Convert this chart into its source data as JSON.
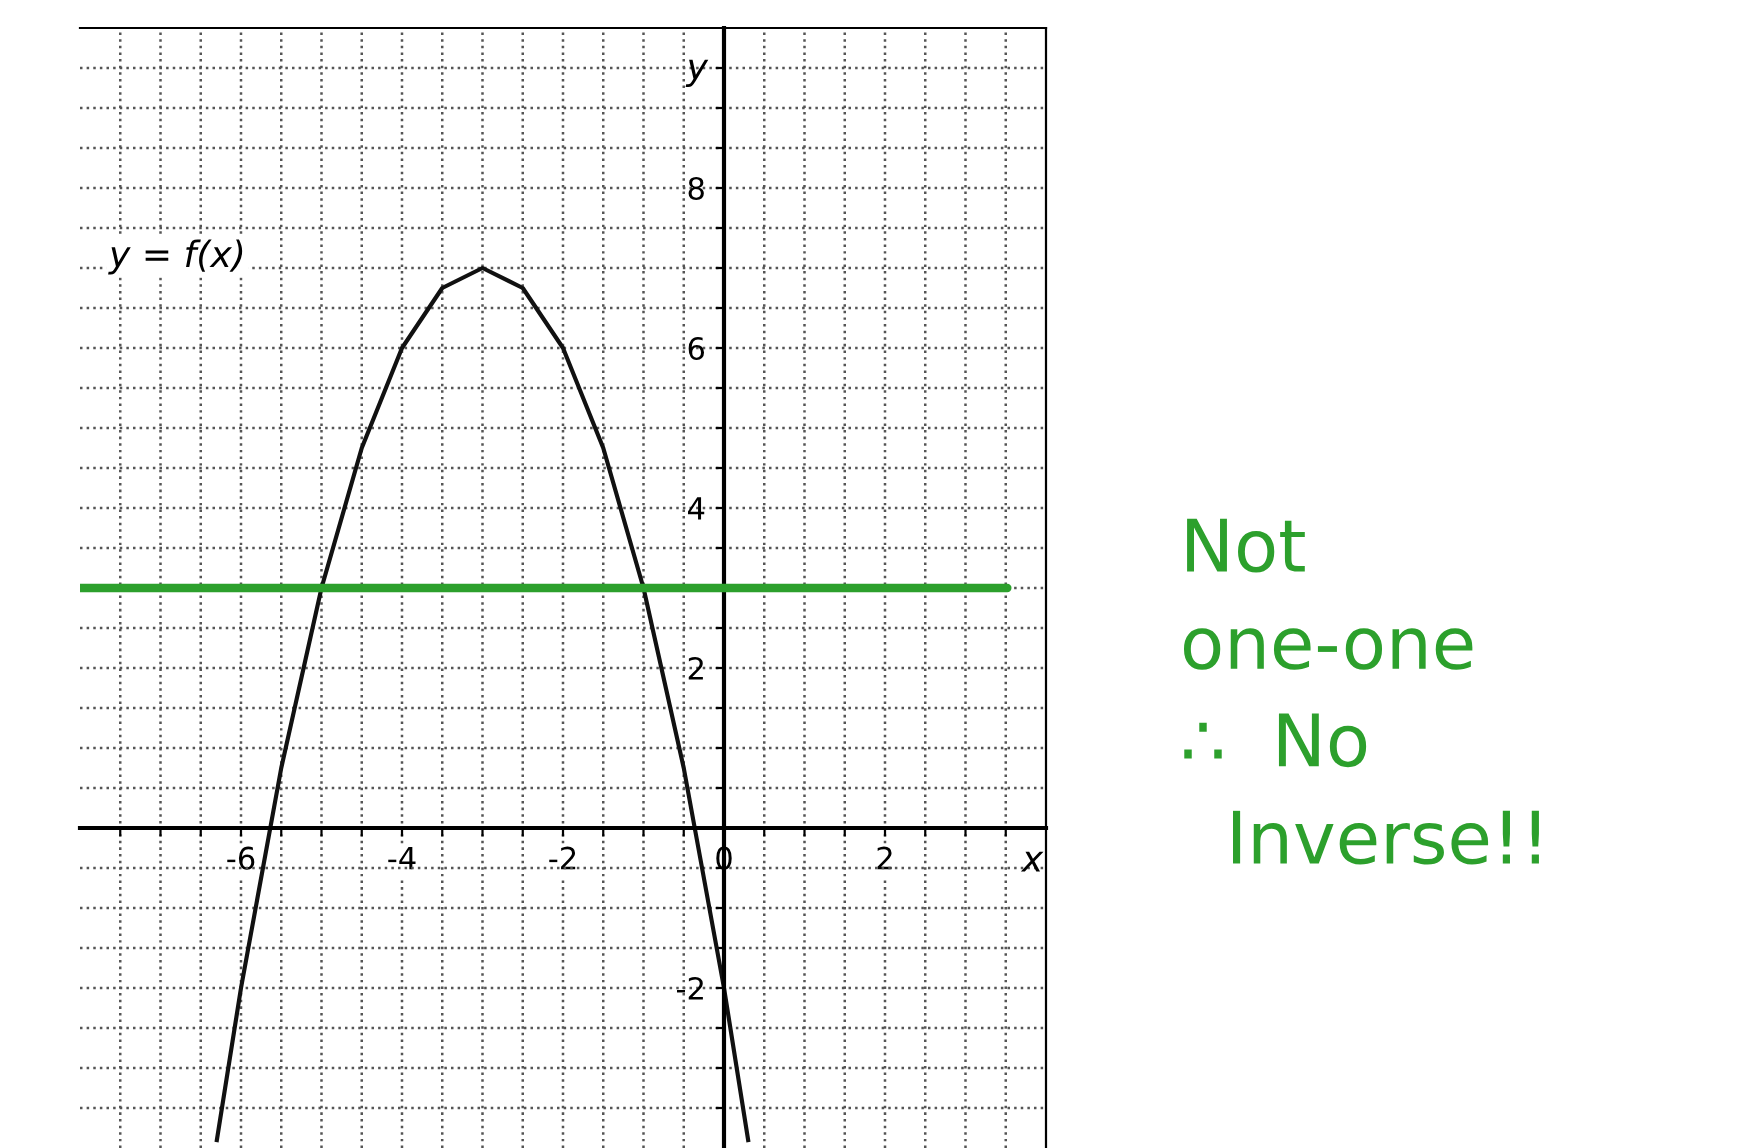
{
  "chart_data": {
    "type": "line",
    "xlabel": "x",
    "ylabel": "y",
    "xlim": [
      -8,
      4
    ],
    "ylim": [
      -4,
      10
    ],
    "xticks": [
      {
        "value": -7.5,
        "label": null
      },
      {
        "value": -7,
        "label": null
      },
      {
        "value": -6.5,
        "label": null
      },
      -6,
      {
        "value": -5.5,
        "label": null
      },
      {
        "value": -5,
        "label": null
      },
      {
        "value": -4.5,
        "label": null
      },
      -4,
      {
        "value": -3.5,
        "label": null
      },
      {
        "value": -3,
        "label": null
      },
      {
        "value": -2.5,
        "label": null
      },
      -2,
      {
        "value": -1.5,
        "label": null
      },
      {
        "value": -1,
        "label": null
      },
      {
        "value": -0.5,
        "label": null
      },
      0,
      {
        "value": 0.5,
        "label": null
      },
      {
        "value": 1,
        "label": null
      },
      {
        "value": 1.5,
        "label": null
      },
      2,
      {
        "value": 2.5,
        "label": null
      },
      {
        "value": 3,
        "label": null
      },
      {
        "value": 3.5,
        "label": null
      }
    ],
    "yticks": [
      {
        "value": -3.5,
        "label": null
      },
      {
        "value": -3,
        "label": null
      },
      {
        "value": -2.5,
        "label": null
      },
      -2,
      {
        "value": -1.5,
        "label": null
      },
      {
        "value": -1,
        "label": null
      },
      {
        "value": -0.5,
        "label": null
      },
      {
        "value": 0.5,
        "label": null
      },
      {
        "value": 1,
        "label": null
      },
      {
        "value": 1.5,
        "label": null
      },
      2,
      {
        "value": 2.5,
        "label": null
      },
      {
        "value": 3,
        "label": null
      },
      {
        "value": 3.5,
        "label": null
      },
      4,
      {
        "value": 4.5,
        "label": null
      },
      {
        "value": 5,
        "label": null
      },
      {
        "value": 5.5,
        "label": null
      },
      6,
      {
        "value": 6.5,
        "label": null
      },
      {
        "value": 7,
        "label": null
      },
      {
        "value": 7.5,
        "label": null
      },
      8,
      {
        "value": 8.5,
        "label": null
      },
      {
        "value": 9,
        "label": null
      },
      {
        "value": 9.5,
        "label": null
      }
    ],
    "grid": true,
    "series": [
      {
        "color": "#111111",
        "x": [
          -6.3,
          -6,
          -5.5,
          -5,
          -4.5,
          -4,
          -3.5,
          -3,
          -2.5,
          -2,
          -1.5,
          -1,
          -0.5,
          0,
          0.3
        ],
        "values": [
          -3.9,
          -2,
          0.75,
          3,
          4.75,
          6,
          6.75,
          7,
          6.75,
          6,
          4.75,
          3,
          0.75,
          -2,
          -3.9
        ]
      }
    ],
    "ref_lines": [
      {
        "axis": "y",
        "value": 3,
        "color": "#2ca02c"
      }
    ],
    "annotations": [
      "y = f(x)",
      "Not\none-one\n∴  No\n  Inverse!!"
    ]
  }
}
